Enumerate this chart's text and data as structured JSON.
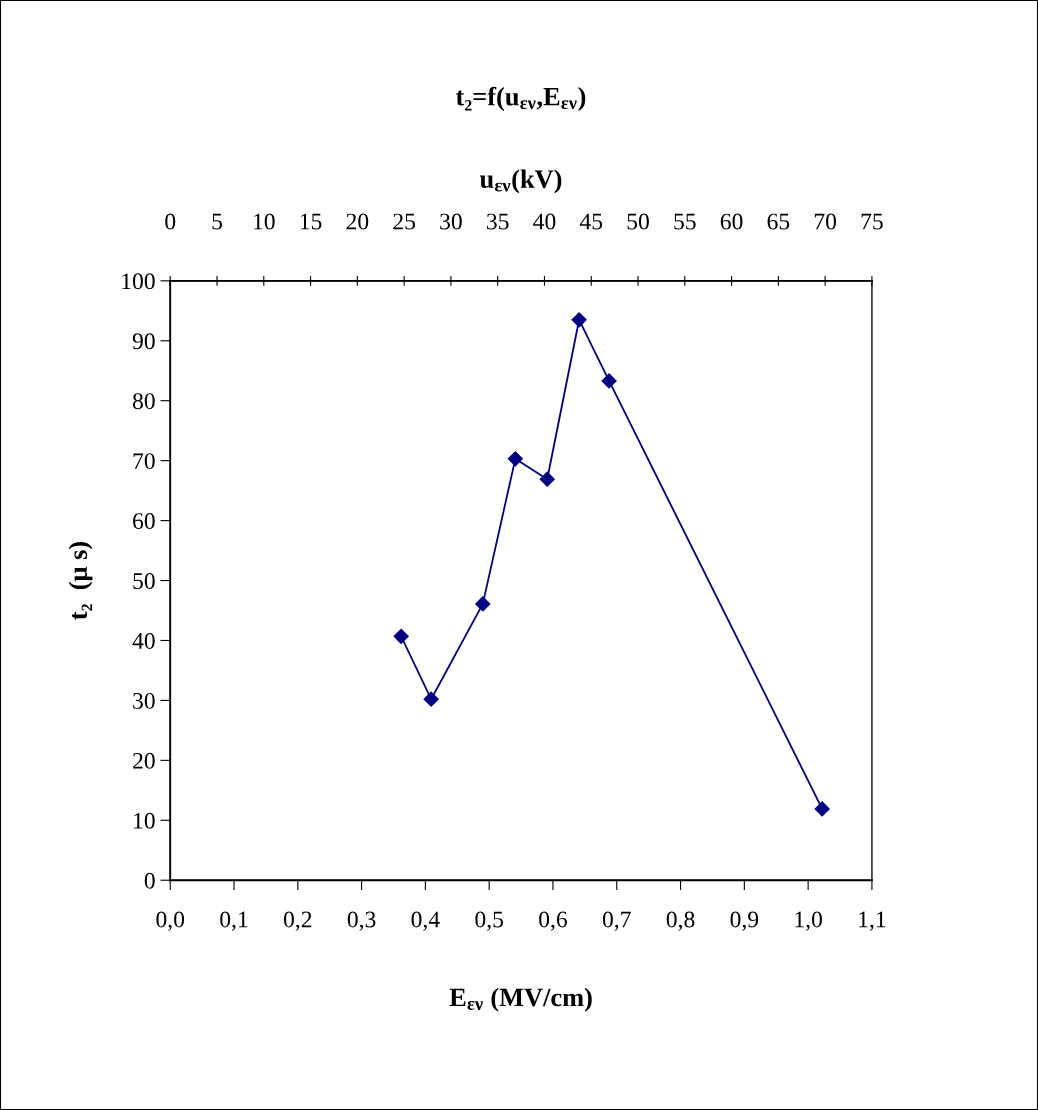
{
  "chart_data": {
    "type": "line",
    "title": "t₂=f(u$_{εν}$,E$_{εν}$)",
    "x2label": "u$_{εν}$(kV)",
    "xlabel": "E$_{εν}$ (MV/cm)",
    "ylabel": "t₂  (μ s)",
    "x": [
      0.362,
      0.409,
      0.49,
      0.541,
      0.591,
      0.641,
      0.688,
      1.022
    ],
    "series": [
      {
        "color": "#000080",
        "values": [
          40.7,
          30.2,
          46.1,
          70.3,
          66.9,
          93.5,
          83.3,
          11.9
        ]
      }
    ],
    "xlim": [
      0,
      1.1
    ],
    "xticks": [
      {
        "value": 0,
        "label": "0,0"
      },
      {
        "value": 0.1,
        "label": "0,1"
      },
      {
        "value": 0.2,
        "label": "0,2"
      },
      {
        "value": 0.3,
        "label": "0,3"
      },
      {
        "value": 0.4,
        "label": "0,4"
      },
      {
        "value": 0.5,
        "label": "0,5"
      },
      {
        "value": 0.6,
        "label": "0,6"
      },
      {
        "value": 0.7,
        "label": "0,7"
      },
      {
        "value": 0.8,
        "label": "0,8"
      },
      {
        "value": 0.9,
        "label": "0,9"
      },
      {
        "value": 1.0,
        "label": "1,0"
      },
      {
        "value": 1.1,
        "label": "1,1"
      }
    ],
    "x2lim": [
      0,
      75
    ],
    "x2ticks": [
      0,
      5,
      10,
      15,
      20,
      25,
      30,
      35,
      40,
      45,
      50,
      55,
      60,
      65,
      70,
      75
    ],
    "ylim": [
      0,
      100
    ],
    "yticks": [
      0,
      10,
      20,
      30,
      40,
      50,
      60,
      70,
      80,
      90,
      100
    ],
    "marker": "diamond",
    "line_style": "solid",
    "grid": false,
    "legend": false
  }
}
